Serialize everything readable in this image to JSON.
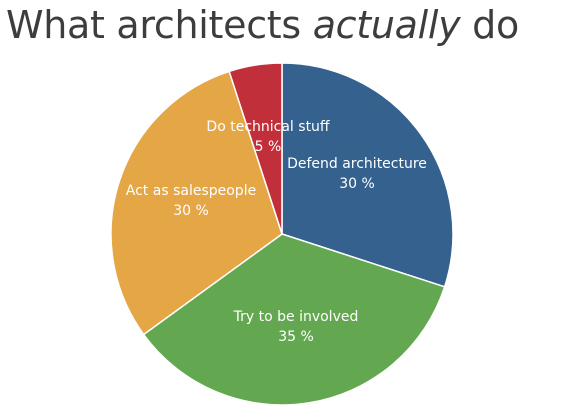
{
  "title": {
    "before": "What architects ",
    "emphasis": "actually",
    "after": " do"
  },
  "chart_data": {
    "type": "pie",
    "title": "What architects actually do",
    "start_angle_deg": 0,
    "direction": "clockwise",
    "slices": [
      {
        "label": "Defend architecture",
        "value": 30,
        "value_label": "30 %",
        "color": "#34618d"
      },
      {
        "label": "Try to be involved",
        "value": 35,
        "value_label": "35 %",
        "color": "#63a850"
      },
      {
        "label": "Act as salespeople",
        "value": 30,
        "value_label": "30 %",
        "color": "#e5a646"
      },
      {
        "label": "Do technical stuff",
        "value": 5,
        "value_label": "5 %",
        "color": "#c1303a"
      }
    ]
  }
}
